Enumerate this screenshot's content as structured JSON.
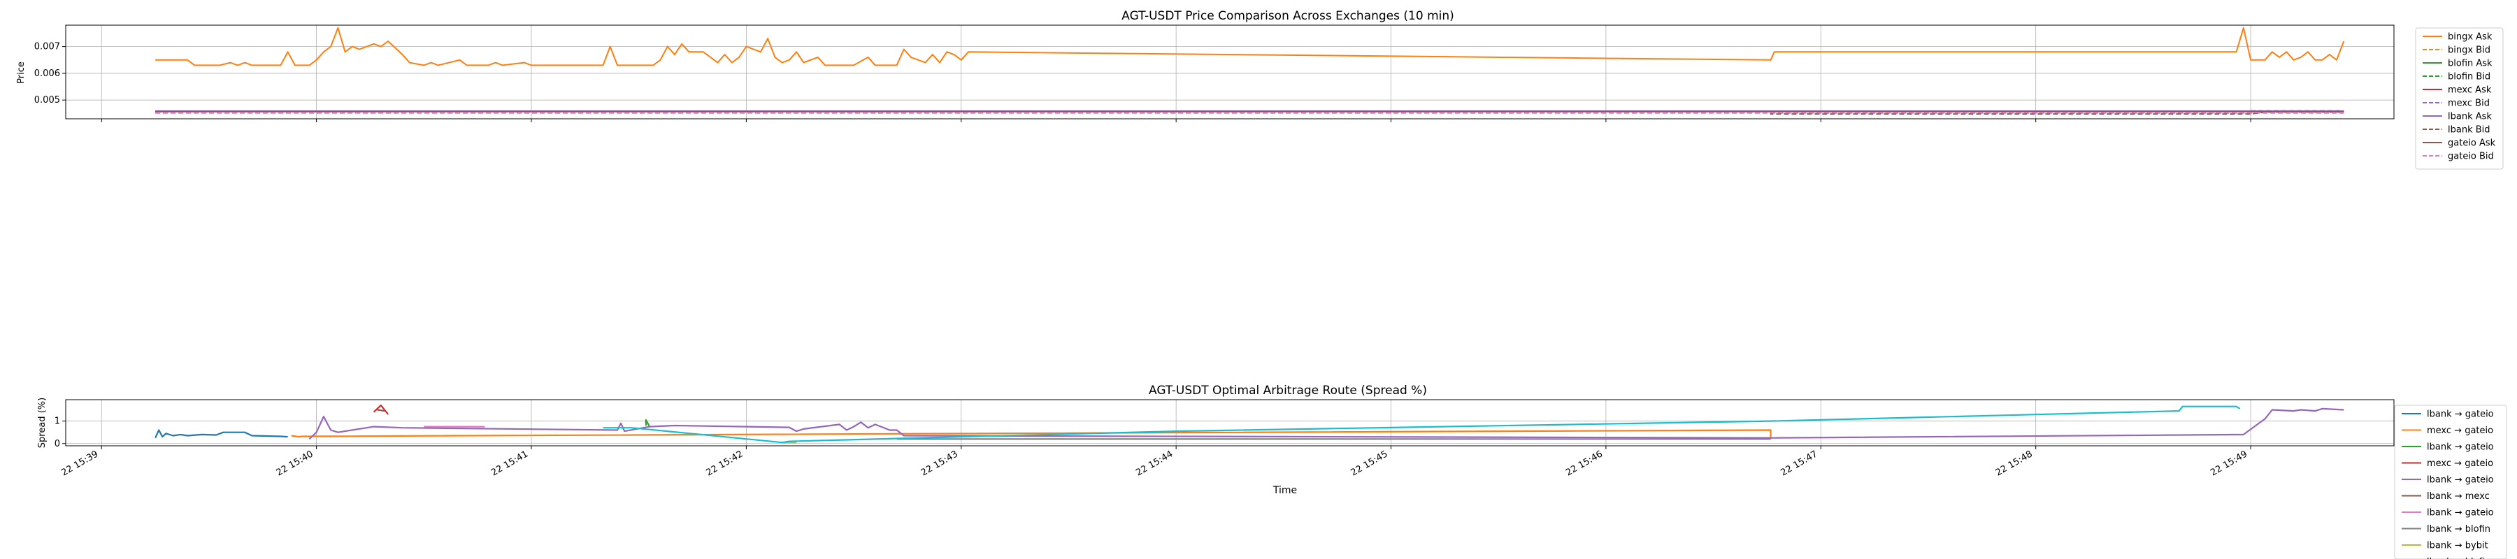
{
  "chart_data": [
    {
      "type": "line",
      "title": "AGT-USDT Price Comparison Across Exchanges (10 min)",
      "xlabel": "",
      "ylabel": "Price",
      "xlim": [
        "2025-01-22 15:38:50",
        "2025-01-22 15:49:40"
      ],
      "ylim": [
        0.0043,
        0.0078
      ],
      "yticks": [
        0.005,
        0.006,
        0.007
      ],
      "ytick_labels": [
        "0.005",
        "0.006",
        "0.007"
      ],
      "grid": true,
      "legend_position": "top-right",
      "series": [
        {
          "name": "bingx Ask",
          "color": "#ff7f0e",
          "style": "solid",
          "points": [
            [
              "15:39:15",
              0.0065
            ],
            [
              "15:39:24",
              0.0065
            ],
            [
              "15:39:26",
              0.0063
            ],
            [
              "15:39:33",
              0.0063
            ],
            [
              "15:39:36",
              0.0064
            ],
            [
              "15:39:38",
              0.0063
            ],
            [
              "15:39:40",
              0.0064
            ],
            [
              "15:39:42",
              0.0063
            ],
            [
              "15:39:50",
              0.0063
            ],
            [
              "15:39:52",
              0.0068
            ],
            [
              "15:39:54",
              0.0063
            ],
            [
              "15:39:58",
              0.0063
            ],
            [
              "15:40:00",
              0.0065
            ],
            [
              "15:40:02",
              0.0068
            ],
            [
              "15:40:04",
              0.007
            ],
            [
              "15:40:06",
              0.0077
            ],
            [
              "15:40:08",
              0.0068
            ],
            [
              "15:40:10",
              0.007
            ],
            [
              "15:40:12",
              0.0069
            ],
            [
              "15:40:16",
              0.0071
            ],
            [
              "15:40:18",
              0.007
            ],
            [
              "15:40:20",
              0.0072
            ],
            [
              "15:40:24",
              0.0067
            ],
            [
              "15:40:26",
              0.0064
            ],
            [
              "15:40:30",
              0.0063
            ],
            [
              "15:40:32",
              0.0064
            ],
            [
              "15:40:34",
              0.0063
            ],
            [
              "15:40:40",
              0.0065
            ],
            [
              "15:40:42",
              0.0063
            ],
            [
              "15:40:48",
              0.0063
            ],
            [
              "15:40:50",
              0.0064
            ],
            [
              "15:40:52",
              0.0063
            ],
            [
              "15:40:58",
              0.0064
            ],
            [
              "15:41:00",
              0.0063
            ],
            [
              "15:41:20",
              0.0063
            ],
            [
              "15:41:22",
              0.007
            ],
            [
              "15:41:24",
              0.0063
            ],
            [
              "15:41:34",
              0.0063
            ],
            [
              "15:41:36",
              0.0065
            ],
            [
              "15:41:38",
              0.007
            ],
            [
              "15:41:40",
              0.0067
            ],
            [
              "15:41:42",
              0.0071
            ],
            [
              "15:41:44",
              0.0068
            ],
            [
              "15:41:48",
              0.0068
            ],
            [
              "15:41:50",
              0.0066
            ],
            [
              "15:41:52",
              0.0064
            ],
            [
              "15:41:54",
              0.0067
            ],
            [
              "15:41:56",
              0.0064
            ],
            [
              "15:41:58",
              0.0066
            ],
            [
              "15:42:00",
              0.007
            ],
            [
              "15:42:04",
              0.0068
            ],
            [
              "15:42:06",
              0.0073
            ],
            [
              "15:42:08",
              0.0066
            ],
            [
              "15:42:10",
              0.0064
            ],
            [
              "15:42:12",
              0.0065
            ],
            [
              "15:42:14",
              0.0068
            ],
            [
              "15:42:16",
              0.0064
            ],
            [
              "15:42:20",
              0.0066
            ],
            [
              "15:42:22",
              0.0063
            ],
            [
              "15:42:30",
              0.0063
            ],
            [
              "15:42:34",
              0.0066
            ],
            [
              "15:42:36",
              0.0063
            ],
            [
              "15:42:42",
              0.0063
            ],
            [
              "15:42:44",
              0.0069
            ],
            [
              "15:42:46",
              0.0066
            ],
            [
              "15:42:50",
              0.0064
            ],
            [
              "15:42:52",
              0.0067
            ],
            [
              "15:42:54",
              0.0064
            ],
            [
              "15:42:56",
              0.0068
            ],
            [
              "15:42:58",
              0.0067
            ],
            [
              "15:43:00",
              0.0065
            ],
            [
              "15:43:02",
              0.0068
            ],
            [
              "15:46:46",
              0.0065
            ],
            [
              "15:46:47",
              0.0068
            ],
            [
              "15:48:56",
              0.0068
            ],
            [
              "15:48:58",
              0.0077
            ],
            [
              "15:49:00",
              0.0065
            ],
            [
              "15:49:04",
              0.0065
            ],
            [
              "15:49:06",
              0.0068
            ],
            [
              "15:49:08",
              0.0066
            ],
            [
              "15:49:10",
              0.0068
            ],
            [
              "15:49:12",
              0.0065
            ],
            [
              "15:49:14",
              0.0066
            ],
            [
              "15:49:16",
              0.0068
            ],
            [
              "15:49:18",
              0.0065
            ],
            [
              "15:49:20",
              0.0065
            ],
            [
              "15:49:22",
              0.0067
            ],
            [
              "15:49:24",
              0.0065
            ],
            [
              "15:49:26",
              0.0072
            ]
          ]
        },
        {
          "name": "bingx Bid",
          "color": "#ff7f0e",
          "style": "dashed",
          "points": [
            [
              "15:49:00",
              0.0046
            ],
            [
              "15:49:26",
              0.0046
            ]
          ]
        },
        {
          "name": "blofin Ask",
          "color": "#2ca02c",
          "style": "solid",
          "points": [
            [
              "15:39:15",
              0.00458
            ],
            [
              "15:49:26",
              0.00458
            ]
          ]
        },
        {
          "name": "blofin Bid",
          "color": "#2ca02c",
          "style": "dashed",
          "points": [
            [
              "15:39:15",
              0.00454
            ],
            [
              "15:49:26",
              0.00454
            ]
          ]
        },
        {
          "name": "mexc Ask",
          "color": "#d62728",
          "style": "solid",
          "points": [
            [
              "15:39:15",
              0.00458
            ],
            [
              "15:49:26",
              0.00458
            ]
          ]
        },
        {
          "name": "mexc Bid",
          "color": "#9467bd",
          "style": "dashed",
          "points": [
            [
              "15:39:15",
              0.00452
            ],
            [
              "15:49:26",
              0.00452
            ]
          ]
        },
        {
          "name": "lbank Ask",
          "color": "#9467bd",
          "style": "solid",
          "points": [
            [
              "15:39:15",
              0.00459
            ],
            [
              "15:49:26",
              0.00459
            ]
          ]
        },
        {
          "name": "lbank Bid",
          "color": "#8c564b",
          "style": "dashed",
          "points": [
            [
              "15:39:15",
              0.00455
            ],
            [
              "15:46:46",
              0.00455
            ],
            [
              "15:46:46",
              0.00448
            ],
            [
              "15:49:00",
              0.00448
            ],
            [
              "15:49:04",
              0.00455
            ],
            [
              "15:49:26",
              0.00455
            ]
          ]
        },
        {
          "name": "gateio Ask",
          "color": "#8c564b",
          "style": "solid",
          "points": [
            [
              "15:39:15",
              0.00457
            ],
            [
              "15:49:26",
              0.00457
            ]
          ]
        },
        {
          "name": "gateio Bid",
          "color": "#e377c2",
          "style": "dashed",
          "points": [
            [
              "15:39:15",
              0.00453
            ],
            [
              "15:49:26",
              0.00453
            ]
          ]
        }
      ]
    },
    {
      "type": "line",
      "title": "AGT-USDT Optimal Arbitrage Route (Spread %)",
      "xlabel": "Time",
      "ylabel": "Spread (%)",
      "xlim": [
        "2025-01-22 15:38:50",
        "2025-01-22 15:49:40"
      ],
      "ylim": [
        -0.1,
        1.95
      ],
      "yticks": [
        0,
        1
      ],
      "ytick_labels": [
        "0",
        "1"
      ],
      "xticks": [
        "15:39",
        "15:40",
        "15:41",
        "15:42",
        "15:43",
        "15:44",
        "15:45",
        "15:46",
        "15:47",
        "15:48",
        "15:49"
      ],
      "xtick_labels": [
        "22 15:39",
        "22 15:40",
        "22 15:41",
        "22 15:42",
        "22 15:43",
        "22 15:44",
        "22 15:45",
        "22 15:46",
        "22 15:47",
        "22 15:48",
        "22 15:49"
      ],
      "grid": true,
      "legend_position": "bottom-right",
      "series": [
        {
          "name": "lbank → gateio",
          "color": "#1f77b4",
          "points": [
            [
              "15:39:15",
              0.25
            ],
            [
              "15:39:16",
              0.6
            ],
            [
              "15:39:17",
              0.3
            ],
            [
              "15:39:18",
              0.45
            ],
            [
              "15:39:20",
              0.35
            ],
            [
              "15:39:22",
              0.4
            ],
            [
              "15:39:24",
              0.35
            ],
            [
              "15:39:28",
              0.4
            ],
            [
              "15:39:32",
              0.38
            ],
            [
              "15:39:34",
              0.5
            ],
            [
              "15:39:40",
              0.5
            ],
            [
              "15:39:42",
              0.35
            ],
            [
              "15:39:50",
              0.32
            ],
            [
              "15:39:52",
              0.3
            ]
          ]
        },
        {
          "name": "mexc → gateio",
          "color": "#ff7f0e",
          "points": [
            [
              "15:39:53",
              0.35
            ],
            [
              "15:39:55",
              0.3
            ],
            [
              "15:39:56",
              0.32
            ],
            [
              "15:46:46",
              0.6
            ],
            [
              "15:46:46",
              0.2
            ]
          ]
        },
        {
          "name": "lbank → gateio",
          "color": "#2ca02c",
          "points": [
            [
              "15:41:32",
              0.8
            ],
            [
              "15:41:32",
              1.05
            ],
            [
              "15:41:33",
              0.75
            ]
          ]
        },
        {
          "name": "mexc → gateio",
          "color": "#d62728",
          "points": [
            [
              "15:40:16",
              1.4
            ],
            [
              "15:40:18",
              1.7
            ],
            [
              "15:40:20",
              1.3
            ]
          ]
        },
        {
          "name": "lbank → gateio",
          "color": "#9467bd",
          "points": [
            [
              "15:39:58",
              0.2
            ],
            [
              "15:40:00",
              0.5
            ],
            [
              "15:40:02",
              1.2
            ],
            [
              "15:40:04",
              0.6
            ],
            [
              "15:40:06",
              0.5
            ],
            [
              "15:40:14",
              0.7
            ],
            [
              "15:40:16",
              0.75
            ],
            [
              "15:40:24",
              0.7
            ],
            [
              "15:41:24",
              0.6
            ],
            [
              "15:41:25",
              0.9
            ],
            [
              "15:41:26",
              0.55
            ],
            [
              "15:41:33",
              0.75
            ],
            [
              "15:41:40",
              0.8
            ],
            [
              "15:42:00",
              0.75
            ],
            [
              "15:42:12",
              0.72
            ],
            [
              "15:42:14",
              0.55
            ],
            [
              "15:42:16",
              0.65
            ],
            [
              "15:42:26",
              0.85
            ],
            [
              "15:42:28",
              0.6
            ],
            [
              "15:42:30",
              0.75
            ],
            [
              "15:42:32",
              0.95
            ],
            [
              "15:42:34",
              0.7
            ],
            [
              "15:42:36",
              0.85
            ],
            [
              "15:42:40",
              0.6
            ],
            [
              "15:42:42",
              0.6
            ],
            [
              "15:42:44",
              0.35
            ],
            [
              "15:46:46",
              0.25
            ],
            [
              "15:48:58",
              0.4
            ],
            [
              "15:49:04",
              1.1
            ],
            [
              "15:49:06",
              1.5
            ],
            [
              "15:49:12",
              1.45
            ],
            [
              "15:49:14",
              1.5
            ],
            [
              "15:49:18",
              1.45
            ],
            [
              "15:49:20",
              1.55
            ],
            [
              "15:49:26",
              1.5
            ]
          ]
        },
        {
          "name": "lbank → mexc",
          "color": "#8c564b",
          "points": [
            [
              "15:40:17",
              1.5
            ],
            [
              "15:40:19",
              1.45
            ]
          ]
        },
        {
          "name": "lbank → gateio",
          "color": "#e377c2",
          "points": [
            [
              "15:40:30",
              0.75
            ],
            [
              "15:40:47",
              0.75
            ]
          ]
        },
        {
          "name": "lbank → blofin",
          "color": "#7f7f7f",
          "points": [
            [
              "15:42:42",
              0.2
            ],
            [
              "15:46:46",
              0.2
            ]
          ]
        },
        {
          "name": "lbank → bybit",
          "color": "#bcbd22",
          "points": [
            [
              "15:42:10",
              0.05
            ],
            [
              "15:42:14",
              0.05
            ]
          ]
        },
        {
          "name": "lbank → blofin",
          "color": "#17becf",
          "points": [
            [
              "15:41:20",
              0.7
            ],
            [
              "15:41:28",
              0.7
            ],
            [
              "15:42:10",
              0.05
            ],
            [
              "15:42:12",
              0.1
            ],
            [
              "15:44:00",
              0.55
            ],
            [
              "15:46:46",
              1.0
            ],
            [
              "15:48:40",
              1.45
            ],
            [
              "15:48:41",
              1.65
            ],
            [
              "15:48:56",
              1.65
            ],
            [
              "15:48:57",
              1.55
            ]
          ]
        }
      ],
      "legend_overflow_fragment": "lbank → gatei"
    }
  ]
}
